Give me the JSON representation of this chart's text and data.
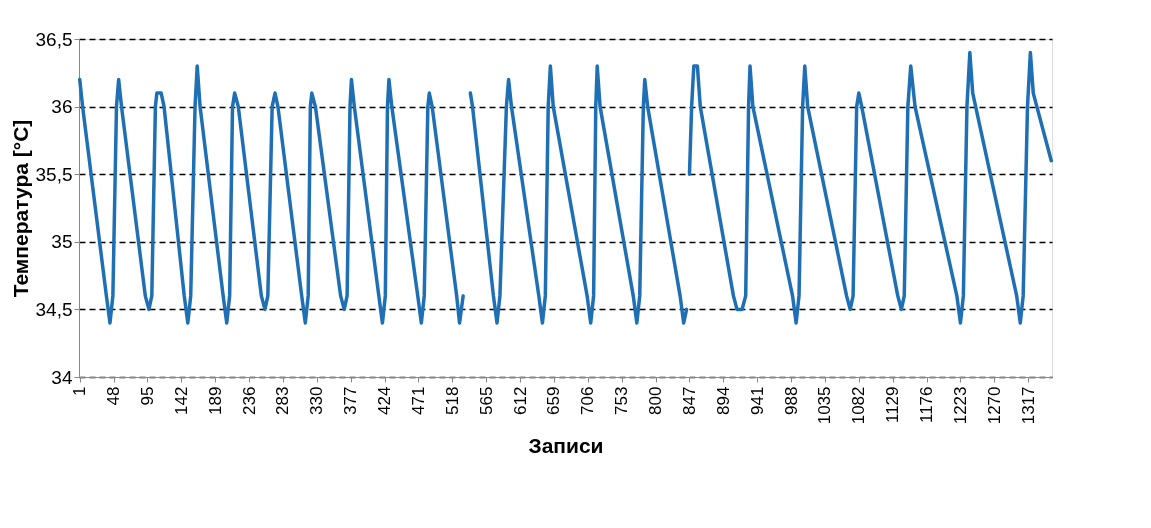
{
  "chart_data": {
    "type": "line",
    "xlabel": "Записи",
    "ylabel": "Температура [°C]",
    "x": [
      1,
      5,
      38,
      43,
      47,
      52,
      55,
      59,
      92,
      97,
      101,
      106,
      108,
      114,
      118,
      146,
      151,
      155,
      161,
      164,
      168,
      200,
      205,
      209,
      213,
      216,
      221,
      253,
      258,
      262,
      268,
      272,
      276,
      309,
      314,
      318,
      321,
      323,
      328,
      363,
      368,
      372,
      376,
      378,
      382,
      416,
      421,
      425,
      428,
      430,
      434,
      470,
      475,
      479,
      484,
      486,
      490,
      524,
      528,
      533,
      538,
      543,
      546,
      575,
      580,
      584,
      593,
      596,
      600,
      638,
      643,
      647,
      651,
      654,
      658,
      705,
      710,
      714,
      717,
      719,
      723,
      769,
      774,
      778,
      783,
      785,
      789,
      834,
      839,
      843,
      845,
      847,
      850,
      853,
      858,
      862,
      908,
      913,
      920,
      925,
      929,
      931,
      935,
      990,
      995,
      999,
      1004,
      1007,
      1011,
      1065,
      1070,
      1074,
      1079,
      1082,
      1086,
      1136,
      1141,
      1145,
      1150,
      1154,
      1160,
      1218,
      1223,
      1227,
      1232,
      1236,
      1240,
      1301,
      1306,
      1310,
      1316,
      1320,
      1324,
      1349
    ],
    "series": [
      {
        "color": "#1f6fb4",
        "values": [
          36.2,
          36.0,
          34.6,
          34.4,
          34.6,
          36.0,
          36.2,
          36.0,
          34.6,
          34.5,
          34.6,
          36.0,
          36.1,
          36.1,
          36.0,
          34.6,
          34.4,
          34.6,
          36.0,
          36.3,
          36.0,
          34.6,
          34.4,
          34.6,
          36.0,
          36.1,
          36.0,
          34.6,
          34.5,
          34.6,
          36.0,
          36.1,
          36.0,
          34.6,
          34.4,
          34.6,
          36.0,
          36.1,
          36.0,
          34.6,
          34.5,
          34.6,
          36.0,
          36.2,
          36.0,
          34.6,
          34.4,
          34.6,
          36.0,
          36.2,
          36.0,
          34.6,
          34.4,
          34.6,
          36.0,
          36.1,
          36.0,
          34.6,
          34.4,
          34.6,
          null,
          36.1,
          36.0,
          34.6,
          34.4,
          34.6,
          36.0,
          36.2,
          36.0,
          34.6,
          34.4,
          34.6,
          36.0,
          36.3,
          36.0,
          34.6,
          34.4,
          34.6,
          36.0,
          36.3,
          36.0,
          34.6,
          34.4,
          34.6,
          36.0,
          36.2,
          36.0,
          34.6,
          34.4,
          34.5,
          null,
          35.5,
          36.0,
          36.3,
          36.3,
          36.0,
          34.6,
          34.5,
          34.5,
          34.6,
          36.0,
          36.3,
          36.0,
          34.6,
          34.4,
          34.6,
          36.0,
          36.3,
          36.0,
          34.6,
          34.5,
          34.6,
          36.0,
          36.1,
          36.0,
          34.6,
          34.5,
          34.6,
          36.0,
          36.3,
          36.0,
          34.6,
          34.4,
          34.6,
          36.0,
          36.4,
          36.1,
          34.6,
          34.4,
          34.6,
          36.0,
          36.4,
          36.1,
          35.6
        ]
      }
    ],
    "xlim": [
      0,
      1350
    ],
    "xticks": [
      1,
      48,
      95,
      142,
      189,
      236,
      283,
      330,
      377,
      424,
      471,
      518,
      565,
      612,
      659,
      706,
      753,
      800,
      847,
      894,
      941,
      988,
      1035,
      1082,
      1129,
      1176,
      1223,
      1270,
      1317
    ],
    "ylim": [
      34,
      36.5
    ],
    "yticks": [
      34,
      {
        "value": 34.5,
        "label": "34,5"
      },
      35,
      {
        "value": 35.5,
        "label": "35,5"
      },
      36,
      {
        "value": 36.5,
        "label": "36,5"
      }
    ],
    "grid": "y",
    "line_style": "solid",
    "marker": "none"
  }
}
